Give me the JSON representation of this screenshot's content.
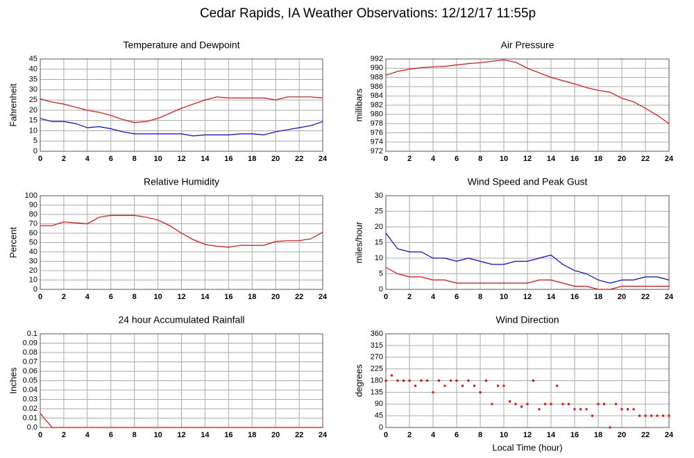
{
  "title": "Cedar Rapids, IA Weather Observations: 12/12/17 11:55p",
  "chart_data": [
    {
      "type": "line",
      "title": "Temperature and Dewpoint",
      "ylabel": "Fahrenheit",
      "x": [
        0,
        1,
        2,
        3,
        4,
        5,
        6,
        7,
        8,
        9,
        10,
        11,
        12,
        13,
        14,
        15,
        16,
        17,
        18,
        19,
        20,
        21,
        22,
        23,
        24
      ],
      "series": [
        {
          "color": "#ff0000",
          "values": [
            25.5,
            24,
            23,
            21.5,
            20,
            19,
            17.5,
            15.5,
            14,
            14.5,
            16,
            18.5,
            21,
            23,
            25,
            26.5,
            26,
            26,
            26,
            26,
            25,
            26.5,
            26.5,
            26.5,
            26
          ]
        },
        {
          "color": "#0000ff",
          "values": [
            16,
            14.5,
            14.5,
            13.5,
            11.5,
            12,
            11,
            9.5,
            8.5,
            8.5,
            8.5,
            8.5,
            8.5,
            7.5,
            8,
            8,
            8,
            8.5,
            8.5,
            8,
            9.5,
            10.5,
            11.5,
            12.5,
            14.5
          ]
        }
      ],
      "xlim": [
        0,
        24
      ],
      "xticks": [
        0,
        2,
        4,
        6,
        8,
        10,
        12,
        14,
        16,
        18,
        20,
        22,
        24
      ],
      "ylim": [
        0,
        45
      ],
      "yticks": [
        0,
        5,
        10,
        15,
        20,
        25,
        30,
        35,
        40,
        45
      ],
      "grid": true
    },
    {
      "type": "line",
      "title": "Air Pressure",
      "ylabel": "millibars",
      "x": [
        0,
        1,
        2,
        3,
        4,
        5,
        6,
        7,
        8,
        9,
        10,
        11,
        12,
        13,
        14,
        15,
        16,
        17,
        18,
        19,
        20,
        21,
        22,
        23,
        24
      ],
      "series": [
        {
          "color": "#ff0000",
          "values": [
            988.5,
            989.3,
            989.8,
            990.1,
            990.3,
            990.4,
            990.7,
            991,
            991.2,
            991.5,
            991.8,
            991.3,
            990,
            989,
            988,
            987.3,
            986.6,
            985.8,
            985.2,
            984.8,
            983.5,
            982.7,
            981.3,
            979.8,
            978
          ]
        }
      ],
      "xlim": [
        0,
        24
      ],
      "xticks": [
        0,
        2,
        4,
        6,
        8,
        10,
        12,
        14,
        16,
        18,
        20,
        22,
        24
      ],
      "ylim": [
        972,
        992
      ],
      "yticks": [
        972,
        974,
        976,
        978,
        980,
        982,
        984,
        986,
        988,
        990,
        992
      ],
      "grid": true
    },
    {
      "type": "line",
      "title": "Relative Humidity",
      "ylabel": "Percent",
      "x": [
        0,
        1,
        2,
        3,
        4,
        5,
        6,
        7,
        8,
        9,
        10,
        11,
        12,
        13,
        14,
        15,
        16,
        17,
        18,
        19,
        20,
        21,
        22,
        23,
        24
      ],
      "series": [
        {
          "color": "#ff0000",
          "values": [
            68,
            68,
            72,
            71,
            70,
            77,
            79,
            79,
            79,
            77,
            74,
            68,
            60,
            53,
            48,
            46,
            45,
            47,
            47,
            47,
            51,
            52,
            52,
            54,
            61
          ]
        }
      ],
      "xlim": [
        0,
        24
      ],
      "xticks": [
        0,
        2,
        4,
        6,
        8,
        10,
        12,
        14,
        16,
        18,
        20,
        22,
        24
      ],
      "ylim": [
        0,
        100
      ],
      "yticks": [
        0,
        10,
        20,
        30,
        40,
        50,
        60,
        70,
        80,
        90,
        100
      ],
      "grid": true
    },
    {
      "type": "line",
      "title": "Wind Speed and Peak Gust",
      "ylabel": "miles/hour",
      "x": [
        0,
        1,
        2,
        3,
        4,
        5,
        6,
        7,
        8,
        9,
        10,
        11,
        12,
        13,
        14,
        15,
        16,
        17,
        18,
        19,
        20,
        21,
        22,
        23,
        24
      ],
      "series": [
        {
          "color": "#0000ff",
          "values": [
            18,
            13,
            12,
            12,
            10,
            10,
            9,
            10,
            9,
            8,
            8,
            9,
            9,
            10,
            11,
            8,
            6,
            5,
            3,
            2,
            3,
            3,
            4,
            4,
            3
          ]
        },
        {
          "color": "#ff0000",
          "values": [
            7,
            5,
            4,
            4,
            3,
            3,
            2,
            2,
            2,
            2,
            2,
            2,
            2,
            3,
            3,
            2,
            1,
            1,
            0,
            0,
            1,
            1,
            1,
            1,
            1
          ]
        }
      ],
      "xlim": [
        0,
        24
      ],
      "xticks": [
        0,
        2,
        4,
        6,
        8,
        10,
        12,
        14,
        16,
        18,
        20,
        22,
        24
      ],
      "ylim": [
        0,
        30
      ],
      "yticks": [
        0,
        5,
        10,
        15,
        20,
        25,
        30
      ],
      "grid": true
    },
    {
      "type": "line",
      "title": "24 hour Accumulated Rainfall",
      "ylabel": "Inches",
      "x": [
        0,
        1,
        2,
        3,
        4,
        5,
        6,
        7,
        8,
        9,
        10,
        11,
        12,
        13,
        14,
        15,
        16,
        17,
        18,
        19,
        20,
        21,
        22,
        23,
        24
      ],
      "series": [
        {
          "color": "#ff0000",
          "values": [
            0.015,
            0,
            0,
            0,
            0,
            0,
            0,
            0,
            0,
            0,
            0,
            0,
            0,
            0,
            0,
            0,
            0,
            0,
            0,
            0,
            0,
            0,
            0,
            0,
            0
          ]
        }
      ],
      "xlim": [
        0,
        24
      ],
      "xticks": [
        0,
        2,
        4,
        6,
        8,
        10,
        12,
        14,
        16,
        18,
        20,
        22,
        24
      ],
      "ylim": [
        0,
        0.1
      ],
      "yticks": [
        {
          "value": 0,
          "label": "0.0"
        },
        0.01,
        0.02,
        0.03,
        0.04,
        0.05,
        0.06,
        0.07,
        0.08,
        0.09,
        0.1
      ],
      "grid": true
    },
    {
      "type": "scatter",
      "title": "Wind Direction",
      "ylabel": "degrees",
      "xlabel": "Local Time (hour)",
      "x": [
        0,
        0.5,
        1,
        1.5,
        2,
        2.5,
        3,
        3.5,
        4,
        4.5,
        5,
        5.5,
        6,
        6.5,
        7,
        7.5,
        8,
        8.5,
        9,
        9.5,
        10,
        10.5,
        11,
        11.5,
        12,
        12.5,
        13,
        13.5,
        14,
        14.5,
        15,
        15.5,
        16,
        16.5,
        17,
        17.5,
        18,
        18.5,
        19,
        19.5,
        20,
        20.5,
        21,
        21.5,
        22,
        22.5,
        23,
        23.5,
        24
      ],
      "series": [
        {
          "color": "#ff0000",
          "values": [
            180,
            200,
            180,
            180,
            180,
            160,
            180,
            180,
            135,
            180,
            160,
            180,
            180,
            160,
            180,
            160,
            135,
            180,
            90,
            160,
            160,
            100,
            90,
            80,
            90,
            180,
            70,
            90,
            90,
            160,
            90,
            90,
            70,
            70,
            70,
            45,
            90,
            90,
            0,
            90,
            70,
            70,
            70,
            45,
            45,
            45,
            45,
            45,
            45
          ]
        }
      ],
      "xlim": [
        0,
        24
      ],
      "xticks": [
        0,
        2,
        4,
        6,
        8,
        10,
        12,
        14,
        16,
        18,
        20,
        22,
        24
      ],
      "ylim": [
        0,
        360
      ],
      "yticks": [
        0,
        45,
        90,
        135,
        180,
        225,
        270,
        315,
        360
      ],
      "grid": true
    }
  ]
}
